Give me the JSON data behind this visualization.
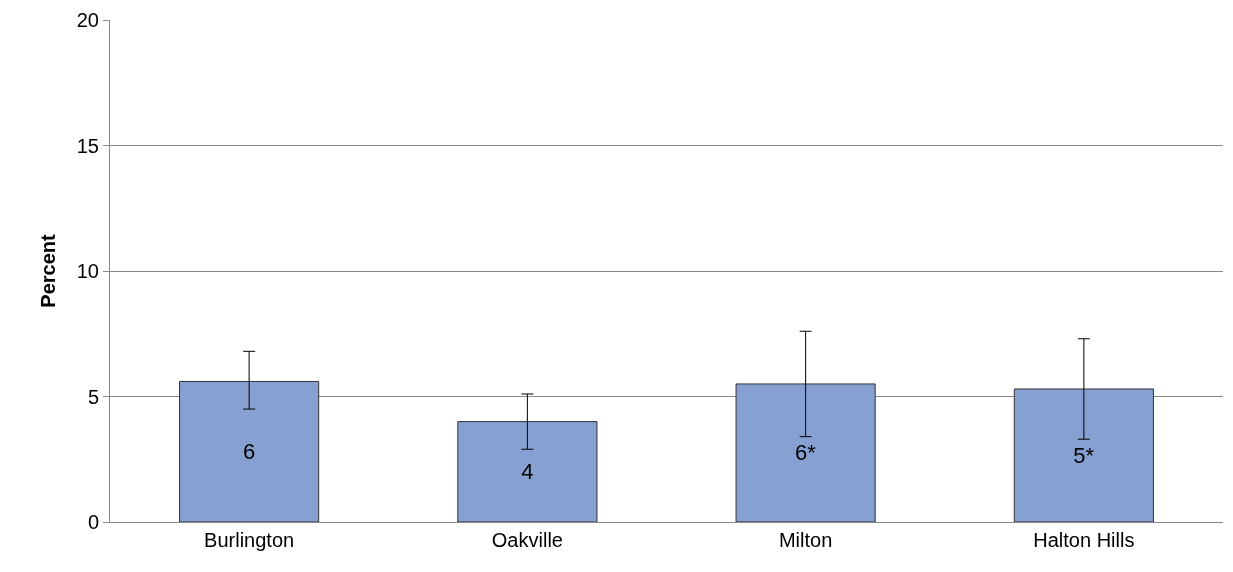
{
  "chart_data": {
    "type": "bar",
    "ylabel": "Percent",
    "categories": [
      "Burlington",
      "Oakville",
      "Milton",
      "Halton Hills"
    ],
    "values": [
      5.6,
      4.0,
      5.5,
      5.3
    ],
    "errors": [
      [
        4.5,
        6.8
      ],
      [
        2.9,
        5.1
      ],
      [
        3.4,
        7.6
      ],
      [
        3.3,
        7.3
      ]
    ],
    "value_labels": [
      "6",
      "4",
      "6*",
      "5*"
    ],
    "color": "#87a0d2",
    "ylim": [
      0,
      20
    ],
    "yticks": [
      0,
      5,
      10,
      15,
      20
    ],
    "grid": "y",
    "legend": false
  }
}
